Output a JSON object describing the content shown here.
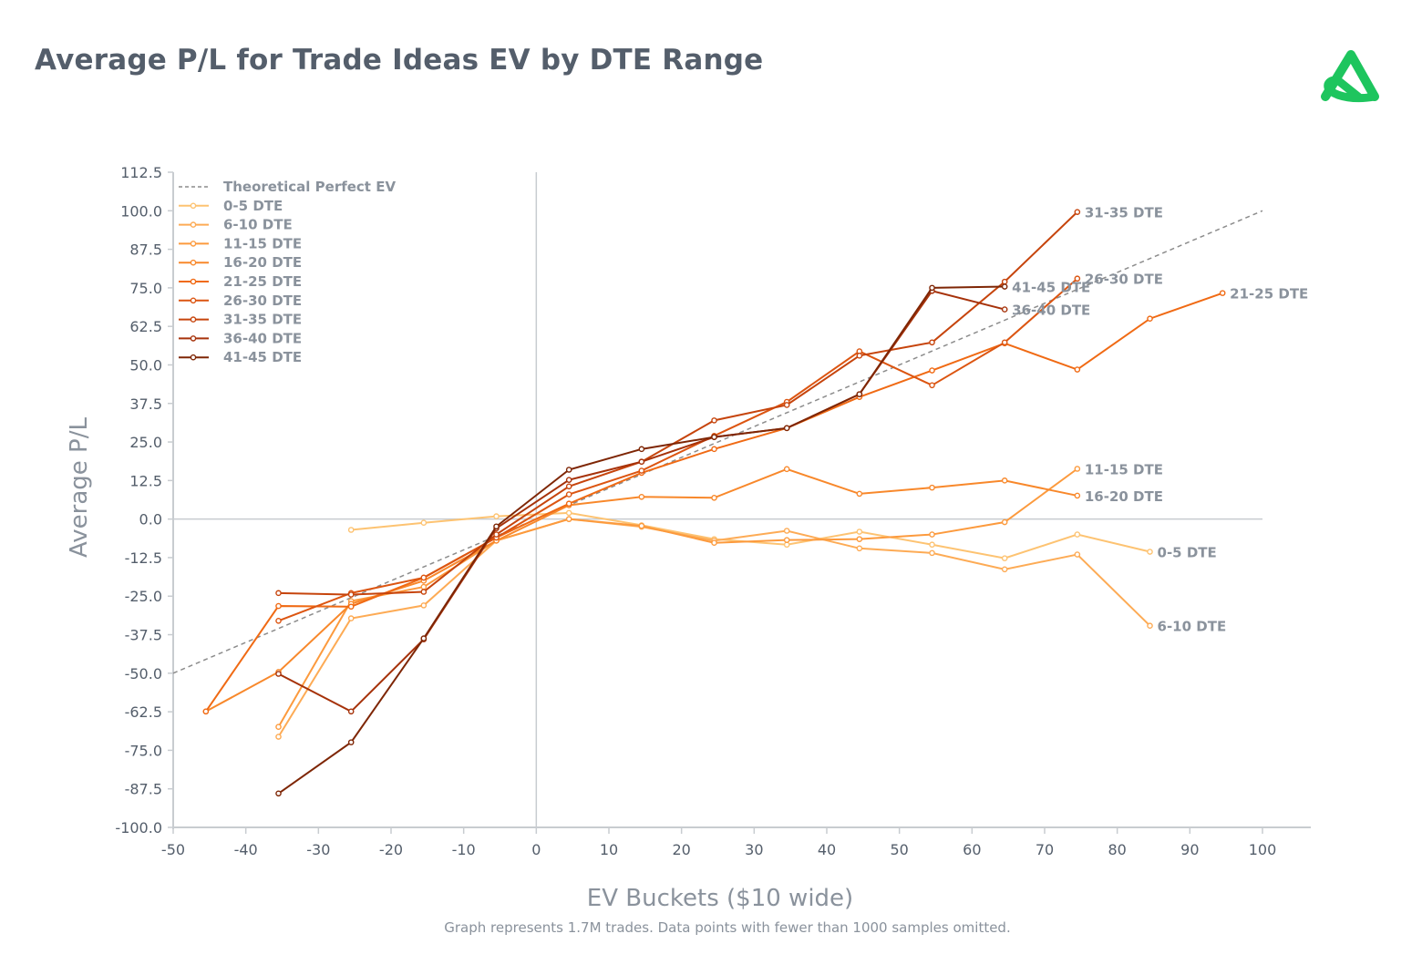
{
  "title": "Average P/L for Trade Ideas EV by DTE Range",
  "footnote": "Graph represents 1.7M trades. Data points with fewer than 1000 samples omitted.",
  "logo": {
    "icon": "green-triangle-loop-logo",
    "color": "#1ec55e"
  },
  "chart_data": {
    "type": "line",
    "xlabel": "EV Buckets ($10 wide)",
    "ylabel": "Average P/L",
    "xlim": [
      -50,
      100
    ],
    "ylim": [
      -100,
      112.5
    ],
    "xticks": [
      "-50",
      "-40",
      "-30",
      "-20",
      "-10",
      "0",
      "10",
      "20",
      "30",
      "40",
      "50",
      "60",
      "70",
      "80",
      "90",
      "100"
    ],
    "yticks": [
      "112.5",
      "100.0",
      "87.5",
      "75.0",
      "62.5",
      "50.0",
      "37.5",
      "25.0",
      "12.5",
      "0.0",
      "-12.5",
      "-25.0",
      "-37.5",
      "-50.0",
      "-62.5",
      "-75.0",
      "-87.5",
      "-100.0"
    ],
    "legend_position": "top-left",
    "grid": false,
    "reference_line": {
      "name": "Theoretical Perfect EV",
      "x": [
        -50,
        100
      ],
      "y": [
        -50,
        100
      ],
      "color": "#8c8c8c",
      "style": "dashed"
    },
    "series": [
      {
        "name": "0-5 DTE",
        "color": "#fdc372",
        "x": [
          -25.5,
          -15.5,
          -5.5,
          4.5,
          14.5,
          24.5,
          34.5,
          44.5,
          54.5,
          64.5,
          74.5,
          84.5
        ],
        "y": [
          -3.5,
          -1.2,
          0.9,
          2,
          -2,
          -6.5,
          -8.3,
          -4.1,
          -8.3,
          -12.7,
          -5,
          -10.6
        ]
      },
      {
        "name": "6-10 DTE",
        "color": "#fdab55",
        "x": [
          -35.5,
          -25.5,
          -15.5,
          -5.5,
          4.5,
          14.5,
          24.5,
          34.5,
          44.5,
          54.5,
          64.5,
          74.5,
          84.5
        ],
        "y": [
          -70.6,
          -32.2,
          -28,
          -7,
          0,
          -2.5,
          -7,
          -3.8,
          -9.5,
          -11,
          -16.3,
          -11.5,
          -34.6
        ]
      },
      {
        "name": "11-15 DTE",
        "color": "#fc9a3d",
        "x": [
          -35.5,
          -25.5,
          -15.5,
          -5.5,
          4.5,
          14.5,
          24.5,
          34.5,
          44.5,
          54.5,
          64.5,
          74.5
        ],
        "y": [
          -67.4,
          -26.6,
          -22,
          -7,
          0,
          -2.2,
          -7.7,
          -6.8,
          -6.5,
          -5,
          -1,
          16.3
        ]
      },
      {
        "name": "16-20 DTE",
        "color": "#f8882b",
        "x": [
          -45.5,
          -35.5,
          -25.5,
          -15.5,
          -5.5,
          4.5,
          14.5,
          24.5,
          34.5,
          44.5,
          54.5,
          64.5,
          74.5
        ],
        "y": [
          -62.4,
          -49.6,
          -27.5,
          -20,
          -7,
          4.5,
          7.2,
          6.9,
          16.2,
          8.2,
          10.2,
          12.5,
          7.6
        ]
      },
      {
        "name": "21-25 DTE",
        "color": "#f06a14",
        "x": [
          -45.5,
          -35.5,
          -25.5,
          -15.5,
          -5.5,
          4.5,
          14.5,
          24.5,
          34.5,
          44.5,
          54.5,
          64.5,
          74.5,
          84.5,
          94.5
        ],
        "y": [
          -62.4,
          -28.2,
          -28.4,
          -19,
          -6,
          5,
          15,
          22.7,
          29.5,
          39.6,
          48.2,
          57,
          48.5,
          65,
          73.3
        ]
      },
      {
        "name": "26-30 DTE",
        "color": "#dc5511",
        "x": [
          -35.5,
          -25.5,
          -15.5,
          -5.5,
          4.5,
          14.5,
          24.5,
          34.5,
          44.5,
          54.5,
          64.5,
          74.5
        ],
        "y": [
          -33,
          -24,
          -19,
          -6,
          8,
          15.7,
          27,
          38,
          54.4,
          43.4,
          57.3,
          78
        ]
      },
      {
        "name": "31-35 DTE",
        "color": "#c6440c",
        "x": [
          -35.5,
          -25.5,
          -15.5,
          -5.5,
          4.5,
          14.5,
          24.5,
          34.5,
          44.5,
          54.5,
          64.5,
          74.5
        ],
        "y": [
          -24,
          -24.5,
          -23.6,
          -5,
          10.6,
          18.6,
          32,
          37,
          53,
          57.3,
          77,
          99.6
        ]
      },
      {
        "name": "36-40 DTE",
        "color": "#a6320a",
        "x": [
          -35.5,
          -25.5,
          -15.5,
          -5.5,
          4.5,
          14.5,
          24.5,
          34.5,
          44.5,
          54.5,
          64.5
        ],
        "y": [
          -50.2,
          -62.4,
          -39,
          -3,
          12.7,
          18.6,
          26.6,
          29.5,
          40.5,
          74,
          68
        ]
      },
      {
        "name": "41-45 DTE",
        "color": "#7e2605",
        "x": [
          -35.5,
          -25.5,
          -15.5,
          -5.5,
          4.5,
          14.5,
          24.5,
          34.5,
          44.5,
          54.5,
          64.5
        ],
        "y": [
          -89,
          -72.4,
          -38.7,
          -2.4,
          16,
          22.7,
          26.6,
          29.5,
          40.5,
          75,
          75.4
        ]
      }
    ]
  }
}
